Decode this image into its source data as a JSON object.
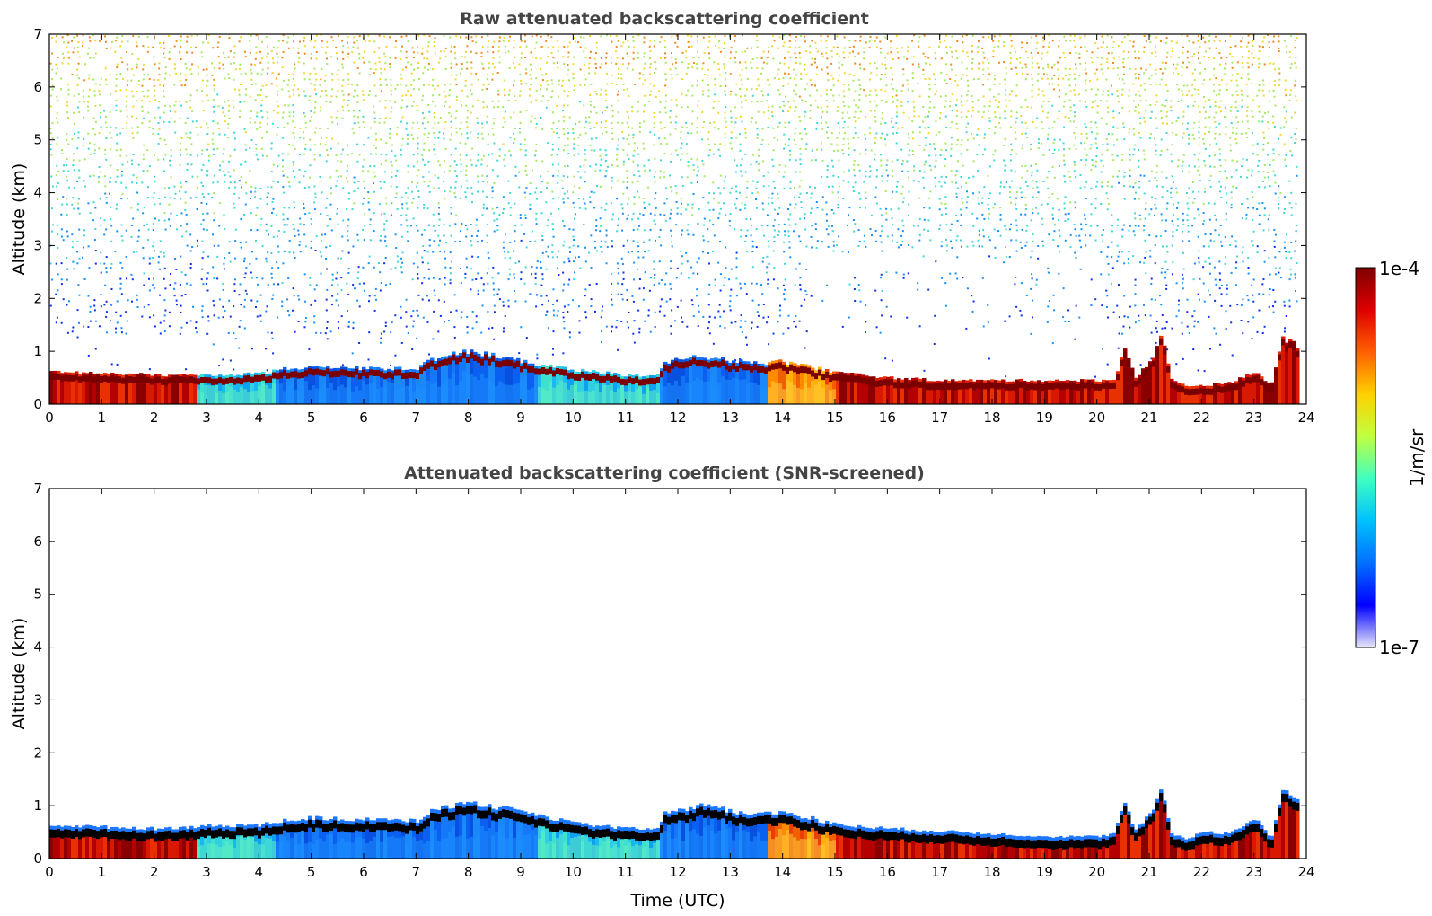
{
  "chart_data": [
    {
      "type": "heatmap",
      "title": "Raw attenuated backscattering coefficient",
      "xlabel": "",
      "ylabel": "Altitude (km)",
      "xlim": [
        0,
        24
      ],
      "ylim": [
        0,
        7
      ],
      "x_ticks": [
        "0",
        "1",
        "2",
        "3",
        "4",
        "5",
        "6",
        "7",
        "8",
        "9",
        "10",
        "11",
        "12",
        "13",
        "14",
        "15",
        "16",
        "17",
        "18",
        "19",
        "20",
        "21",
        "22",
        "23",
        "24"
      ],
      "y_ticks": [
        "0",
        "1",
        "2",
        "3",
        "4",
        "5",
        "6",
        "7"
      ],
      "noise_above_layer": true,
      "layer_top_km": {
        "time_utc": [
          0,
          1,
          2,
          3,
          4,
          4.5,
          5,
          6,
          7,
          7.3,
          7.7,
          8,
          8.3,
          8.6,
          9,
          10,
          11,
          11.6,
          11.7,
          12,
          12.5,
          13,
          13.5,
          14,
          14.5,
          15,
          16,
          17,
          18,
          19,
          20,
          20.3,
          20.5,
          20.7,
          21,
          21.2,
          21.4,
          21.7,
          22,
          22.5,
          23,
          23.3,
          23.5,
          23.8
        ],
        "altitude_km": [
          0.62,
          0.58,
          0.55,
          0.55,
          0.58,
          0.68,
          0.7,
          0.68,
          0.68,
          0.85,
          0.95,
          1.0,
          0.95,
          0.9,
          0.8,
          0.65,
          0.55,
          0.55,
          0.8,
          0.85,
          0.9,
          0.82,
          0.78,
          0.8,
          0.7,
          0.6,
          0.5,
          0.45,
          0.45,
          0.45,
          0.45,
          0.45,
          1.1,
          0.5,
          0.8,
          1.3,
          0.45,
          0.35,
          0.35,
          0.4,
          0.6,
          0.35,
          1.25,
          1.1
        ]
      },
      "layer_regimes": [
        {
          "from_utc": 0,
          "to_utc": 2.8,
          "color_scale": "red"
        },
        {
          "from_utc": 2.8,
          "to_utc": 4.3,
          "color_scale": "cyan"
        },
        {
          "from_utc": 4.3,
          "to_utc": 9.3,
          "color_scale": "blue"
        },
        {
          "from_utc": 9.3,
          "to_utc": 11.6,
          "color_scale": "cyan"
        },
        {
          "from_utc": 11.6,
          "to_utc": 13.7,
          "color_scale": "blue"
        },
        {
          "from_utc": 13.7,
          "to_utc": 15.0,
          "color_scale": "orange"
        },
        {
          "from_utc": 15.0,
          "to_utc": 23.8,
          "color_scale": "red"
        }
      ]
    },
    {
      "type": "heatmap",
      "title": "Attenuated backscattering coefficient (SNR-screened)",
      "xlabel": "Time (UTC)",
      "ylabel": "Altitude (km)",
      "xlim": [
        0,
        24
      ],
      "ylim": [
        0,
        7
      ],
      "x_ticks": [
        "0",
        "1",
        "2",
        "3",
        "4",
        "5",
        "6",
        "7",
        "8",
        "9",
        "10",
        "11",
        "12",
        "13",
        "14",
        "15",
        "16",
        "17",
        "18",
        "19",
        "20",
        "21",
        "22",
        "23",
        "24"
      ],
      "y_ticks": [
        "0",
        "1",
        "2",
        "3",
        "4",
        "5",
        "6",
        "7"
      ],
      "noise_above_layer": false,
      "layer_top_km": {
        "time_utc": [
          0,
          1,
          2,
          3,
          4,
          4.5,
          5,
          6,
          7,
          7.3,
          7.7,
          8,
          8.3,
          8.6,
          9,
          10,
          11,
          11.6,
          11.7,
          12,
          12.5,
          13,
          13.5,
          14,
          14.5,
          15,
          16,
          17,
          18,
          19,
          20,
          20.3,
          20.5,
          20.7,
          21,
          21.2,
          21.4,
          21.7,
          22,
          22.5,
          23,
          23.3,
          23.5,
          23.8
        ],
        "altitude_km": [
          0.62,
          0.58,
          0.55,
          0.6,
          0.62,
          0.72,
          0.75,
          0.72,
          0.7,
          0.9,
          1.0,
          1.05,
          0.98,
          0.95,
          0.85,
          0.65,
          0.55,
          0.55,
          0.82,
          0.9,
          1.0,
          0.88,
          0.82,
          0.85,
          0.75,
          0.62,
          0.55,
          0.5,
          0.45,
          0.4,
          0.4,
          0.45,
          1.05,
          0.5,
          0.85,
          1.25,
          0.45,
          0.35,
          0.5,
          0.45,
          0.75,
          0.35,
          1.25,
          1.1
        ]
      },
      "layer_regimes": [
        {
          "from_utc": 0,
          "to_utc": 2.8,
          "color_scale": "red"
        },
        {
          "from_utc": 2.8,
          "to_utc": 4.3,
          "color_scale": "cyan"
        },
        {
          "from_utc": 4.3,
          "to_utc": 9.3,
          "color_scale": "blue"
        },
        {
          "from_utc": 9.3,
          "to_utc": 11.6,
          "color_scale": "cyan"
        },
        {
          "from_utc": 11.6,
          "to_utc": 13.7,
          "color_scale": "blue"
        },
        {
          "from_utc": 13.7,
          "to_utc": 15.0,
          "color_scale": "orange"
        },
        {
          "from_utc": 15.0,
          "to_utc": 23.8,
          "color_scale": "red"
        }
      ]
    }
  ],
  "colorbar": {
    "max_label": "1e-4",
    "min_label": "1e-7",
    "unit_label": "1/m/sr",
    "scale": "log",
    "colors_bottom_to_top": [
      "#e6e6fa",
      "#0000ff",
      "#0070ff",
      "#00c0ff",
      "#40ffc0",
      "#c0ff40",
      "#ffd000",
      "#ff6000",
      "#dd0000",
      "#800000"
    ]
  },
  "colors": {
    "red": "#c81200",
    "dark_red": "#800000",
    "orange": "#ff9000",
    "cyan": "#20c8f0",
    "blue": "#0a6cf0",
    "black": "#000000"
  }
}
